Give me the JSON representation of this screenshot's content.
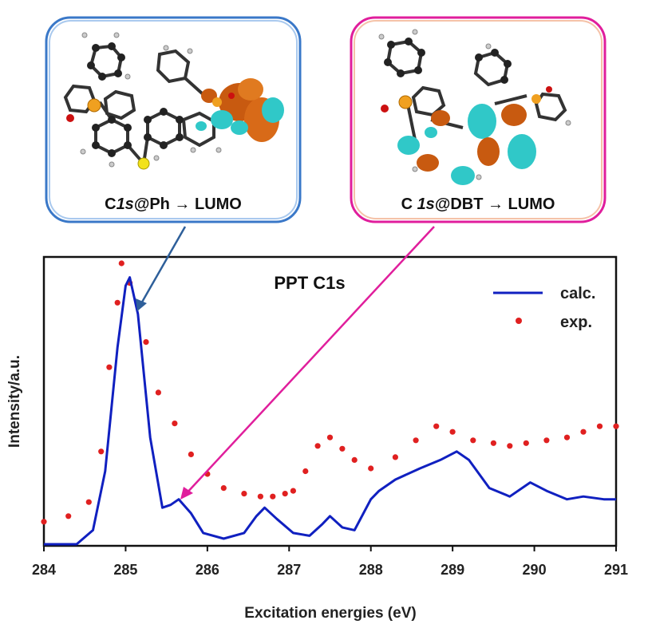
{
  "panels": {
    "left": {
      "label_prefix": "C",
      "label_italic": "1s",
      "label_suffix": "@Ph → LUMO",
      "border_color": "#3a78c8"
    },
    "right": {
      "label_prefix": "C ",
      "label_italic": "1s",
      "label_suffix": "@DBT → LUMO",
      "border_color": "#e01e9c"
    }
  },
  "chart_data": {
    "type": "line",
    "title": "PPT C1s",
    "xlabel": "Excitation energies (eV)",
    "ylabel": "Intensity/a.u.",
    "xlim": [
      284,
      291
    ],
    "ylim": [
      0,
      1
    ],
    "xticks": [
      "284",
      "285",
      "286",
      "287",
      "288",
      "289",
      "290",
      "291"
    ],
    "grid": false,
    "legend_position": "top-right",
    "series": [
      {
        "name": "calc.",
        "style": "line",
        "color": "#1020c0",
        "x": [
          284.0,
          284.4,
          284.6,
          284.75,
          284.9,
          285.0,
          285.05,
          285.15,
          285.3,
          285.45,
          285.55,
          285.65,
          285.8,
          285.95,
          286.2,
          286.45,
          286.6,
          286.7,
          286.85,
          287.05,
          287.25,
          287.4,
          287.5,
          287.65,
          287.8,
          288.0,
          288.1,
          288.3,
          288.6,
          288.85,
          289.05,
          289.2,
          289.45,
          289.7,
          289.95,
          290.15,
          290.4,
          290.6,
          290.85,
          291.0
        ],
        "y": [
          0.0,
          0.0,
          0.05,
          0.26,
          0.7,
          0.92,
          0.95,
          0.82,
          0.38,
          0.13,
          0.14,
          0.16,
          0.11,
          0.04,
          0.02,
          0.04,
          0.1,
          0.13,
          0.09,
          0.04,
          0.03,
          0.07,
          0.1,
          0.06,
          0.05,
          0.16,
          0.19,
          0.23,
          0.27,
          0.3,
          0.33,
          0.3,
          0.2,
          0.17,
          0.22,
          0.19,
          0.16,
          0.17,
          0.16,
          0.16
        ]
      },
      {
        "name": "exp.",
        "style": "markers",
        "color": "#e02020",
        "x": [
          284.0,
          284.3,
          284.55,
          284.7,
          284.8,
          284.9,
          284.95,
          285.05,
          285.15,
          285.25,
          285.4,
          285.6,
          285.8,
          286.0,
          286.2,
          286.45,
          286.65,
          286.8,
          286.95,
          287.05,
          287.2,
          287.35,
          287.5,
          287.65,
          287.8,
          288.0,
          288.3,
          288.55,
          288.8,
          289.0,
          289.25,
          289.5,
          289.7,
          289.9,
          290.15,
          290.4,
          290.6,
          290.8,
          291.0
        ],
        "y": [
          0.08,
          0.1,
          0.15,
          0.33,
          0.63,
          0.86,
          1.0,
          0.93,
          0.85,
          0.72,
          0.54,
          0.43,
          0.32,
          0.25,
          0.2,
          0.18,
          0.17,
          0.17,
          0.18,
          0.19,
          0.26,
          0.35,
          0.38,
          0.34,
          0.3,
          0.27,
          0.31,
          0.37,
          0.42,
          0.4,
          0.37,
          0.36,
          0.35,
          0.36,
          0.37,
          0.38,
          0.4,
          0.42,
          0.42
        ]
      }
    ]
  }
}
